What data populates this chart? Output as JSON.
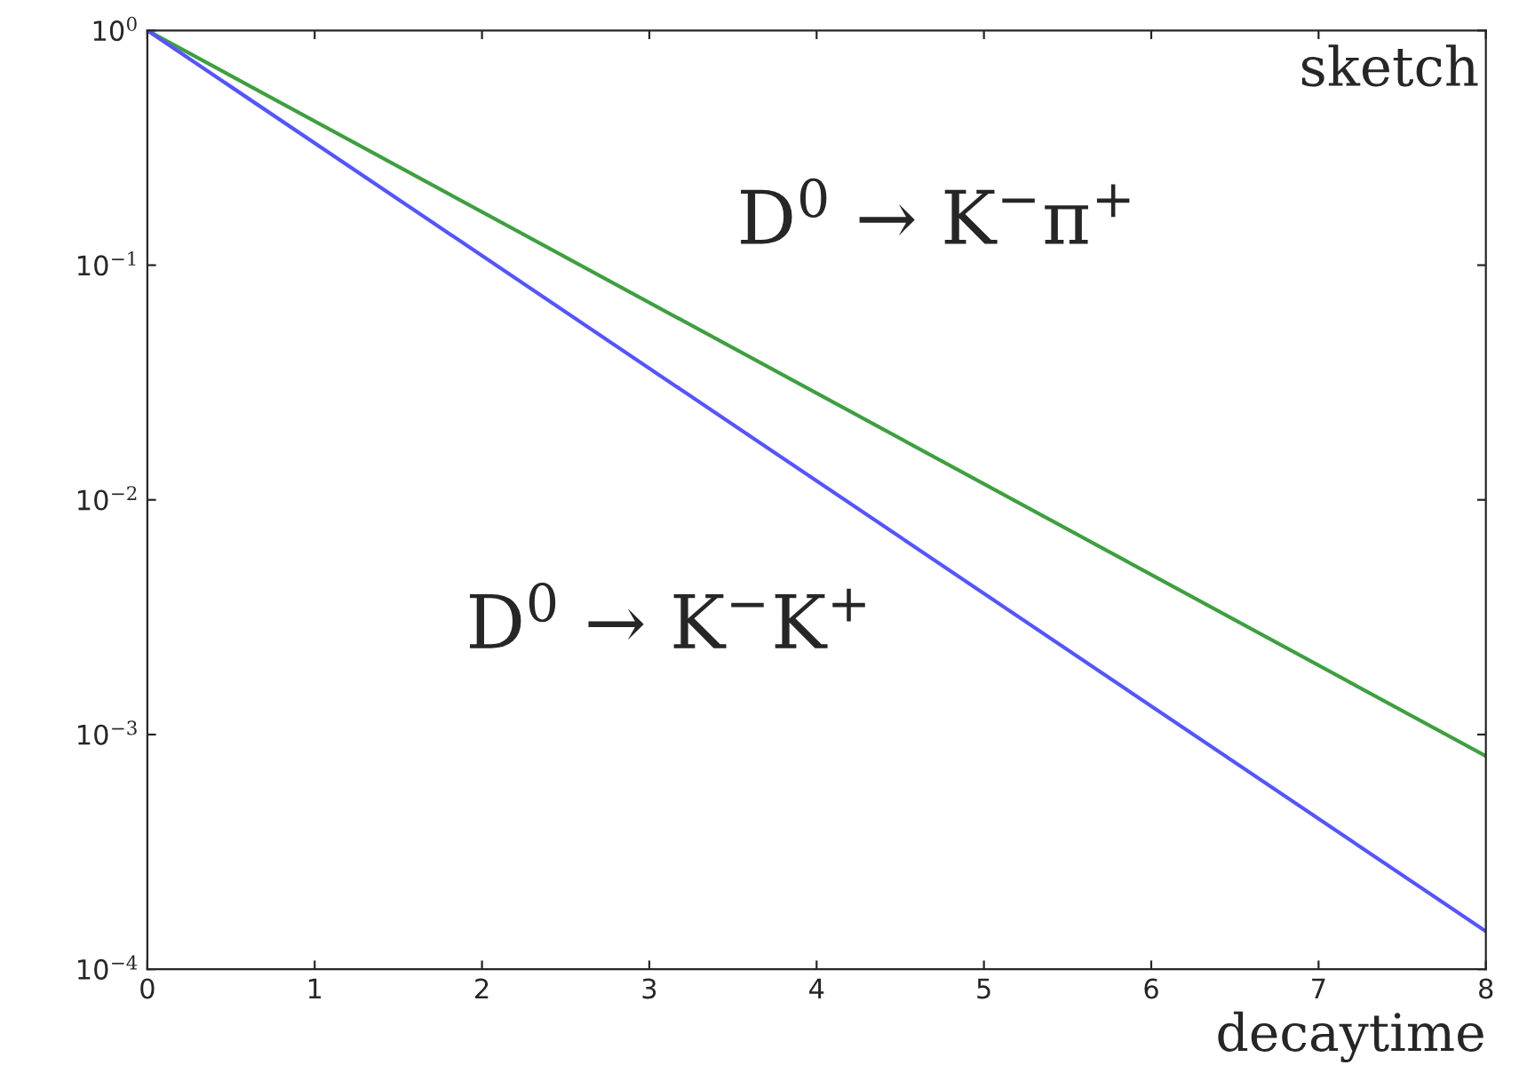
{
  "chart_data": {
    "type": "line",
    "xlabel": "decaytime",
    "annotations": [
      "sketch"
    ],
    "log": "y",
    "xlim": [
      0,
      8
    ],
    "xticks": [
      0,
      1,
      2,
      3,
      4,
      5,
      6,
      7,
      8
    ],
    "ylim": [
      0.0001,
      1
    ],
    "yticks": [
      {
        "value": 0.0001,
        "label": "10$^{−4}$"
      },
      {
        "value": 0.001,
        "label": "10$^{−3}$"
      },
      {
        "value": 0.01,
        "label": "10$^{−2}$"
      },
      {
        "value": 0.1,
        "label": "10$^{−1}$"
      },
      {
        "value": 1,
        "label": "10$^{0}$"
      }
    ],
    "x": [
      0,
      8
    ],
    "grid": false,
    "legend": false,
    "marker": "none",
    "line_style": "solid",
    "series": [
      {
        "name": "D$^{0}$ → K$^{−}$π$^{+}$",
        "color": "#3f9f3f",
        "values": [
          1,
          0.00081
        ]
      },
      {
        "name": "D$^{0}$ → K$^{−}$K$^{+}$",
        "color": "#5555ff",
        "values": [
          1,
          0.000145
        ]
      }
    ]
  }
}
